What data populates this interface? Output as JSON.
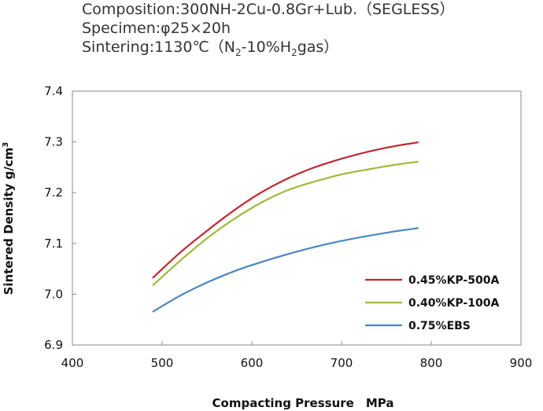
{
  "header": {
    "composition": "Composition:300NH-2Cu-0.8Gr+Lub.（SEGLESS）",
    "specimen": "Specimen:φ25×20h",
    "sintering_prefix": "Sintering:1130℃（N",
    "sintering_sub1": "2",
    "sintering_mid": "-10%H",
    "sintering_sub2": "2",
    "sintering_suffix": "gas）"
  },
  "chart_data": {
    "type": "line",
    "xlabel": "Compacting Pressure　MPa",
    "ylabel_main": "Sintered Density  g/cm",
    "ylabel_sup": "3",
    "xlim": [
      400,
      900
    ],
    "ylim": [
      6.9,
      7.4
    ],
    "xticks": [
      "400",
      "500",
      "600",
      "700",
      "800",
      "900"
    ],
    "yticks": [
      "6.9",
      "7.0",
      "7.1",
      "7.2",
      "7.3",
      "7.4"
    ],
    "grid": false,
    "legend_position": "bottom-right",
    "series": [
      {
        "name": "0.45%KP-500A",
        "color": "#c0282d",
        "x": [
          490,
          520,
          550,
          580,
          610,
          640,
          670,
          700,
          730,
          760,
          785
        ],
        "y": [
          7.033,
          7.082,
          7.125,
          7.165,
          7.2,
          7.228,
          7.25,
          7.267,
          7.281,
          7.292,
          7.299
        ]
      },
      {
        "name": "0.40%KP-100A",
        "color": "#9bbb3b",
        "x": [
          490,
          520,
          550,
          580,
          610,
          640,
          670,
          700,
          730,
          760,
          785
        ],
        "y": [
          7.018,
          7.066,
          7.11,
          7.148,
          7.18,
          7.205,
          7.222,
          7.236,
          7.246,
          7.255,
          7.261
        ]
      },
      {
        "name": "0.75%EBS",
        "color": "#4a86c5",
        "x": [
          490,
          520,
          550,
          580,
          610,
          640,
          670,
          700,
          730,
          760,
          785
        ],
        "y": [
          6.966,
          6.997,
          7.023,
          7.045,
          7.063,
          7.079,
          7.093,
          7.105,
          7.115,
          7.124,
          7.13
        ]
      }
    ]
  }
}
